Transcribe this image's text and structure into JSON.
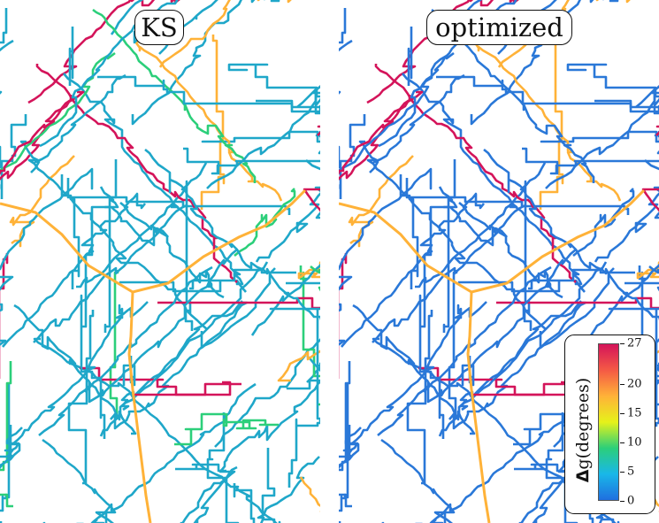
{
  "panels": [
    {
      "title": "KS",
      "palette": "cyan"
    },
    {
      "title": "optimized",
      "palette": "blue"
    }
  ],
  "colorbar": {
    "label_symbol": "Δ",
    "label_text": "g(degrees)",
    "min": 0,
    "max": 27,
    "ticks": [
      "0",
      "5",
      "10",
      "15",
      "20",
      "27"
    ],
    "tick_values": [
      0,
      5,
      10,
      15,
      20,
      27
    ],
    "colors": [
      "#1f6fe0",
      "#19b7e8",
      "#2ccf7a",
      "#e6f21a",
      "#ffb238",
      "#f45a45",
      "#d4145a"
    ]
  },
  "colors": {
    "ks_base": "#1fa7c9",
    "opt_base": "#2a78d8"
  }
}
